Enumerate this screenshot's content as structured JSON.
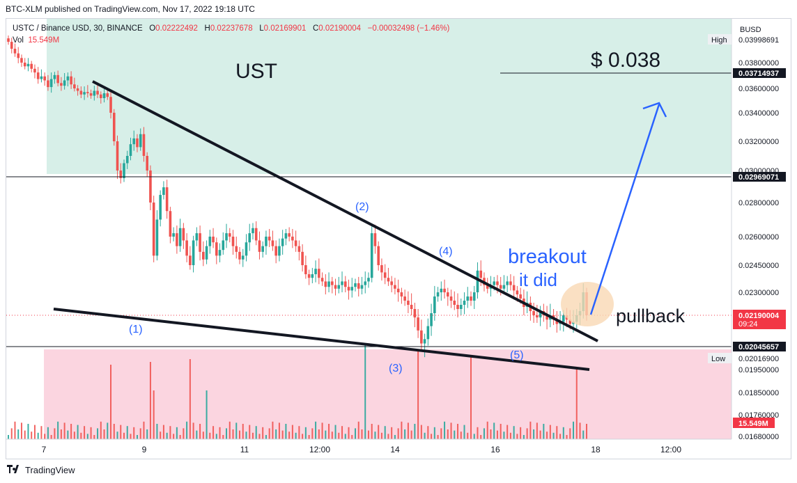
{
  "header": {
    "published_line": "BTC-XLM published on TradingView.com, Nov 17, 2022 19:18 UTC",
    "symbol": "USTC / Binance USD, 30, BINANCE",
    "o_label": "O",
    "o_value": "0.02222492",
    "h_label": "H",
    "h_value": "0.02237678",
    "l_label": "L",
    "l_value": "0.02169901",
    "c_label": "C",
    "c_value": "0.02190004",
    "change": "−0.00032498 (−1.46%)",
    "vol_label": "Vol",
    "vol_value": "15.549M"
  },
  "footer": {
    "brand": "TradingView"
  },
  "chart_data": {
    "type": "candlestick",
    "currency_label": "BUSD",
    "x_tick_labels": [
      {
        "label": "7",
        "t": 0
      },
      {
        "label": "9",
        "t": 2
      },
      {
        "label": "11",
        "t": 4
      },
      {
        "label": "12:00",
        "t": 5.5
      },
      {
        "label": "14",
        "t": 7
      },
      {
        "label": "16",
        "t": 9
      },
      {
        "label": "18",
        "t": 11
      },
      {
        "label": "12:00",
        "t": 12.5
      }
    ],
    "y_tick_labels": [
      "0.03800000",
      "0.03600000",
      "0.03400000",
      "0.03200000",
      "0.03000000",
      "0.02800000",
      "0.02600000",
      "0.02450000",
      "0.02300000",
      "0.01950000",
      "0.01850000",
      "0.01760000",
      "0.01680000"
    ],
    "y_tick_values": [
      0.038,
      0.036,
      0.034,
      0.032,
      0.03,
      0.028,
      0.026,
      0.0245,
      0.023,
      0.0195,
      0.0185,
      0.0176,
      0.0168
    ],
    "price_levels": [
      {
        "label": "High",
        "value": 0.03998691,
        "text": "0.03998691",
        "style": "tag"
      },
      {
        "label": "",
        "value": 0.03714937,
        "text": "0.03714937",
        "style": "dark"
      },
      {
        "label": "",
        "value": 0.02969071,
        "text": "0.02969071",
        "style": "dark"
      },
      {
        "label": "",
        "value": 0.02190004,
        "text": "0.02190004",
        "sub": "09:24",
        "style": "red"
      },
      {
        "label": "",
        "value": 0.02045657,
        "text": "0.02045657",
        "style": "dark"
      },
      {
        "label": "Low",
        "value": 0.020169,
        "text": "0.02016900",
        "style": "tag"
      }
    ],
    "volume_tag": "15.549M",
    "colors": {
      "up": "#26a69a",
      "down": "#ef5350",
      "line": "#131722",
      "annotation": "#2962ff",
      "target_zone": "#d7efe8",
      "low_zone": "#fbd5e0"
    },
    "candles_close": [
      0.0398,
      0.0392,
      0.0388,
      0.0384,
      0.038,
      0.0377,
      0.0379,
      0.0375,
      0.0372,
      0.0367,
      0.0369,
      0.0366,
      0.0361,
      0.0367,
      0.037,
      0.0364,
      0.0362,
      0.0366,
      0.0369,
      0.0363,
      0.036,
      0.0358,
      0.0355,
      0.0357,
      0.0356,
      0.0354,
      0.0358,
      0.0355,
      0.0352,
      0.0356,
      0.0353,
      0.034,
      0.032,
      0.03,
      0.0296,
      0.0305,
      0.031,
      0.0318,
      0.0322,
      0.0316,
      0.0325,
      0.031,
      0.03,
      0.028,
      0.025,
      0.027,
      0.0285,
      0.029,
      0.0275,
      0.026,
      0.0262,
      0.0255,
      0.0265,
      0.0258,
      0.025,
      0.0245,
      0.0258,
      0.0262,
      0.0252,
      0.0248,
      0.0255,
      0.026,
      0.0257,
      0.025,
      0.0253,
      0.0258,
      0.0262,
      0.026,
      0.0255,
      0.0252,
      0.0248,
      0.025,
      0.0257,
      0.0262,
      0.0265,
      0.0258,
      0.0252,
      0.0255,
      0.026,
      0.0258,
      0.0255,
      0.025,
      0.0255,
      0.0259,
      0.0262,
      0.026,
      0.0258,
      0.0255,
      0.0252,
      0.0245,
      0.024,
      0.0238,
      0.024,
      0.0243,
      0.0238,
      0.0236,
      0.0233,
      0.0236,
      0.0234,
      0.0232,
      0.0234,
      0.0236,
      0.0233,
      0.0231,
      0.0233,
      0.0235,
      0.0232,
      0.0234,
      0.0236,
      0.0238,
      0.0262,
      0.0255,
      0.0245,
      0.0241,
      0.0238,
      0.0236,
      0.0234,
      0.0232,
      0.023,
      0.0228,
      0.0226,
      0.0224,
      0.0222,
      0.0218,
      0.0212,
      0.0206,
      0.0208,
      0.0214,
      0.022,
      0.0228,
      0.023,
      0.0232,
      0.023,
      0.0228,
      0.0226,
      0.0224,
      0.0222,
      0.0224,
      0.0226,
      0.0228,
      0.0226,
      0.023,
      0.0242,
      0.0238,
      0.0234,
      0.0232,
      0.0234,
      0.0236,
      0.0234,
      0.0232,
      0.0234,
      0.0236,
      0.0234,
      0.0231,
      0.0229,
      0.0227,
      0.0223,
      0.0225,
      0.0221,
      0.0219,
      0.0218,
      0.0221,
      0.0219,
      0.0217,
      0.0219,
      0.0217,
      0.0215,
      0.0216,
      0.0219,
      0.0217,
      0.0215,
      0.0216,
      0.0219,
      0.0221,
      0.023,
      0.0219
    ],
    "annotations": {
      "title": "UST",
      "target": "$ 0.038",
      "breakout_1": "breakout",
      "breakout_2": "it did",
      "pullback": "pullback",
      "waves": [
        "(1)",
        "(2)",
        "(3)",
        "(4)",
        "(5)"
      ]
    }
  }
}
